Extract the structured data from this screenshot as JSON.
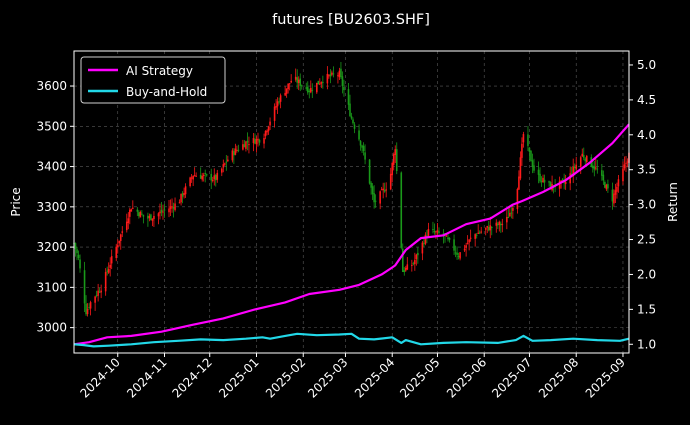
{
  "chart_data": {
    "type": "line",
    "title": "futures [BU2603.SHF]",
    "ylabel_left": "Price",
    "ylabel_right": "Return",
    "xlabel": "",
    "grid": true,
    "legend_placement": "top-left",
    "x_range": [
      "2024-09-02",
      "2025-09-05"
    ],
    "ylim_price": [
      2937,
      3687
    ],
    "ylim_return": [
      0.875,
      5.2
    ],
    "x_ticks": [
      "2024-10",
      "2024-11",
      "2024-12",
      "2025-01",
      "2025-02",
      "2025-03",
      "2025-04",
      "2025-05",
      "2025-06",
      "2025-07",
      "2025-08",
      "2025-09"
    ],
    "y_ticks_price": [
      3000,
      3100,
      3200,
      3300,
      3400,
      3500,
      3600
    ],
    "y_ticks_return": [
      "1.0",
      "1.5",
      "2.0",
      "2.5",
      "3.0",
      "3.5",
      "4.0",
      "4.5",
      "5.0"
    ],
    "colors": {
      "ai_strategy": "#ff00ff",
      "buy_and_hold": "#22d8e8",
      "candle_up": "#ff1a1a",
      "candle_down": "#1a9a1a",
      "background": "#000000",
      "axes": "#ffffff",
      "grid": "#5a5a5a"
    },
    "series": [
      {
        "name": "AI Strategy",
        "axis": "return",
        "x": [
          "2024-09-02",
          "2024-09-12",
          "2024-09-24",
          "2024-10-10",
          "2024-10-30",
          "2024-11-20",
          "2024-12-10",
          "2024-12-31",
          "2025-01-20",
          "2025-02-05",
          "2025-02-25",
          "2025-03-10",
          "2025-03-25",
          "2025-04-01",
          "2025-04-03",
          "2025-04-10",
          "2025-04-20",
          "2025-05-05",
          "2025-05-20",
          "2025-06-05",
          "2025-06-20",
          "2025-06-26",
          "2025-07-10",
          "2025-07-25",
          "2025-08-10",
          "2025-08-25",
          "2025-09-05"
        ],
        "values": [
          1.0,
          1.03,
          1.1,
          1.12,
          1.18,
          1.28,
          1.37,
          1.5,
          1.6,
          1.72,
          1.78,
          1.85,
          2.0,
          2.1,
          2.13,
          2.35,
          2.52,
          2.56,
          2.72,
          2.8,
          3.0,
          3.05,
          3.18,
          3.35,
          3.6,
          3.88,
          4.15
        ]
      },
      {
        "name": "Buy-and-Hold",
        "axis": "return",
        "x": [
          "2024-09-02",
          "2024-09-08",
          "2024-09-15",
          "2024-09-25",
          "2024-10-10",
          "2024-10-25",
          "2024-11-10",
          "2024-11-25",
          "2024-12-10",
          "2024-12-25",
          "2025-01-05",
          "2025-01-10",
          "2025-01-20",
          "2025-01-28",
          "2025-02-10",
          "2025-02-25",
          "2025-03-05",
          "2025-03-10",
          "2025-03-20",
          "2025-04-01",
          "2025-04-07",
          "2025-04-10",
          "2025-04-20",
          "2025-05-05",
          "2025-05-20",
          "2025-06-10",
          "2025-06-22",
          "2025-06-27",
          "2025-07-03",
          "2025-07-15",
          "2025-07-30",
          "2025-08-15",
          "2025-08-30",
          "2025-09-05"
        ],
        "values": [
          1.0,
          0.99,
          0.97,
          0.98,
          1.0,
          1.03,
          1.05,
          1.07,
          1.06,
          1.08,
          1.1,
          1.08,
          1.12,
          1.15,
          1.13,
          1.14,
          1.15,
          1.08,
          1.07,
          1.1,
          1.02,
          1.06,
          1.0,
          1.02,
          1.03,
          1.02,
          1.06,
          1.12,
          1.05,
          1.06,
          1.08,
          1.06,
          1.05,
          1.08
        ]
      }
    ],
    "price_close": {
      "axis": "price",
      "x": [
        "2024-09-02",
        "2024-09-05",
        "2024-09-10",
        "2024-09-14",
        "2024-09-20",
        "2024-09-28",
        "2024-10-10",
        "2024-10-20",
        "2024-11-01",
        "2024-11-10",
        "2024-11-20",
        "2024-12-05",
        "2024-12-15",
        "2024-12-25",
        "2025-01-05",
        "2025-01-15",
        "2025-01-25",
        "2025-02-05",
        "2025-02-15",
        "2025-02-25",
        "2025-03-05",
        "2025-03-12",
        "2025-03-20",
        "2025-03-30",
        "2025-04-03",
        "2025-04-08",
        "2025-04-15",
        "2025-04-25",
        "2025-05-05",
        "2025-05-15",
        "2025-05-25",
        "2025-06-05",
        "2025-06-15",
        "2025-06-22",
        "2025-06-27",
        "2025-07-05",
        "2025-07-15",
        "2025-07-25",
        "2025-08-05",
        "2025-08-15",
        "2025-08-25",
        "2025-09-05"
      ],
      "values": [
        3210,
        3170,
        3040,
        3070,
        3100,
        3180,
        3300,
        3270,
        3290,
        3310,
        3380,
        3370,
        3430,
        3460,
        3470,
        3560,
        3620,
        3590,
        3620,
        3630,
        3520,
        3450,
        3310,
        3360,
        3450,
        3140,
        3160,
        3240,
        3230,
        3180,
        3230,
        3250,
        3260,
        3320,
        3480,
        3380,
        3350,
        3360,
        3430,
        3390,
        3320,
        3430
      ]
    },
    "annotations": []
  }
}
